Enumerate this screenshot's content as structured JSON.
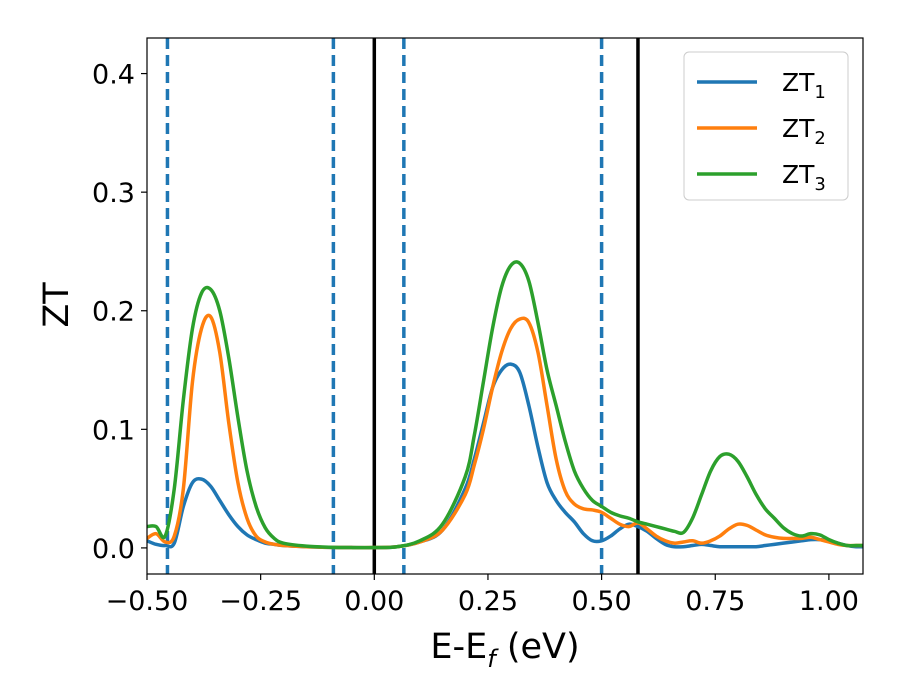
{
  "chart_data": {
    "type": "line",
    "xlabel": {
      "main": "E-E",
      "sub": "f",
      "unit": " (eV)"
    },
    "ylabel": "ZT",
    "xlim": [
      -0.5,
      1.075
    ],
    "ylim": [
      -0.022,
      0.43
    ],
    "x_ticks": [
      -0.5,
      -0.25,
      0.0,
      0.25,
      0.5,
      0.75,
      1.0
    ],
    "x_tick_labels": [
      "−0.50",
      "−0.25",
      "0.00",
      "0.25",
      "0.50",
      "0.75",
      "1.00"
    ],
    "y_ticks": [
      0.0,
      0.1,
      0.2,
      0.3,
      0.4
    ],
    "y_tick_labels": [
      "0.0",
      "0.1",
      "0.2",
      "0.3",
      "0.4"
    ],
    "grid": false,
    "legend_position": "top-right",
    "vlines_dashed": {
      "x": [
        -0.455,
        -0.09,
        0.065,
        0.5
      ],
      "color": "#1f77b4"
    },
    "vlines_solid": {
      "x": [
        0.0,
        0.58
      ],
      "color": "#000000"
    },
    "x": [
      -0.5,
      -0.48,
      -0.46,
      -0.44,
      -0.42,
      -0.4,
      -0.38,
      -0.36,
      -0.34,
      -0.32,
      -0.3,
      -0.28,
      -0.26,
      -0.24,
      -0.22,
      -0.2,
      -0.15,
      -0.1,
      -0.05,
      0.0,
      0.05,
      0.1,
      0.15,
      0.2,
      0.22,
      0.24,
      0.26,
      0.28,
      0.3,
      0.32,
      0.34,
      0.36,
      0.38,
      0.4,
      0.42,
      0.44,
      0.46,
      0.48,
      0.5,
      0.52,
      0.54,
      0.56,
      0.58,
      0.6,
      0.62,
      0.64,
      0.66,
      0.68,
      0.7,
      0.72,
      0.74,
      0.76,
      0.78,
      0.8,
      0.82,
      0.84,
      0.86,
      0.88,
      0.9,
      0.92,
      0.94,
      0.96,
      0.98,
      1.0,
      1.02,
      1.04,
      1.06,
      1.075
    ],
    "series": [
      {
        "name": {
          "main": "ZT",
          "sub": "1"
        },
        "color": "#1f77b4",
        "values": [
          0.006,
          0.003,
          0.002,
          0.004,
          0.035,
          0.055,
          0.058,
          0.052,
          0.04,
          0.028,
          0.018,
          0.011,
          0.007,
          0.004,
          0.003,
          0.002,
          0.001,
          0.0005,
          0.0003,
          0.0002,
          0.001,
          0.005,
          0.015,
          0.05,
          0.075,
          0.105,
          0.135,
          0.15,
          0.155,
          0.148,
          0.12,
          0.085,
          0.055,
          0.04,
          0.03,
          0.022,
          0.012,
          0.006,
          0.006,
          0.01,
          0.016,
          0.02,
          0.018,
          0.014,
          0.008,
          0.003,
          0.001,
          0.001,
          0.002,
          0.003,
          0.002,
          0.001,
          0.001,
          0.001,
          0.001,
          0.001,
          0.002,
          0.003,
          0.004,
          0.005,
          0.006,
          0.007,
          0.007,
          0.006,
          0.004,
          0.002,
          0.001,
          0.001
        ]
      },
      {
        "name": {
          "main": "ZT",
          "sub": "2"
        },
        "color": "#ff7f0e",
        "values": [
          0.008,
          0.012,
          0.005,
          0.01,
          0.05,
          0.14,
          0.185,
          0.195,
          0.165,
          0.105,
          0.055,
          0.025,
          0.01,
          0.005,
          0.003,
          0.002,
          0.001,
          0.0005,
          0.0003,
          0.0003,
          0.001,
          0.005,
          0.015,
          0.045,
          0.07,
          0.1,
          0.135,
          0.165,
          0.185,
          0.193,
          0.19,
          0.165,
          0.12,
          0.075,
          0.048,
          0.037,
          0.033,
          0.032,
          0.03,
          0.025,
          0.02,
          0.018,
          0.021,
          0.016,
          0.01,
          0.006,
          0.004,
          0.005,
          0.006,
          0.004,
          0.006,
          0.01,
          0.016,
          0.02,
          0.019,
          0.015,
          0.011,
          0.009,
          0.008,
          0.008,
          0.008,
          0.009,
          0.007,
          0.005,
          0.003,
          0.002,
          0.002,
          0.002
        ]
      },
      {
        "name": {
          "main": "ZT",
          "sub": "3"
        },
        "color": "#2ca02c",
        "values": [
          0.018,
          0.018,
          0.01,
          0.05,
          0.125,
          0.185,
          0.215,
          0.218,
          0.2,
          0.16,
          0.11,
          0.065,
          0.035,
          0.017,
          0.008,
          0.004,
          0.0015,
          0.0006,
          0.0003,
          0.0003,
          0.001,
          0.006,
          0.02,
          0.06,
          0.095,
          0.14,
          0.185,
          0.22,
          0.238,
          0.24,
          0.225,
          0.19,
          0.15,
          0.12,
          0.09,
          0.065,
          0.05,
          0.04,
          0.035,
          0.03,
          0.027,
          0.025,
          0.022,
          0.02,
          0.018,
          0.016,
          0.014,
          0.013,
          0.025,
          0.045,
          0.065,
          0.077,
          0.079,
          0.073,
          0.06,
          0.045,
          0.033,
          0.025,
          0.017,
          0.012,
          0.01,
          0.012,
          0.011,
          0.007,
          0.004,
          0.002,
          0.002,
          0.002
        ]
      }
    ]
  }
}
